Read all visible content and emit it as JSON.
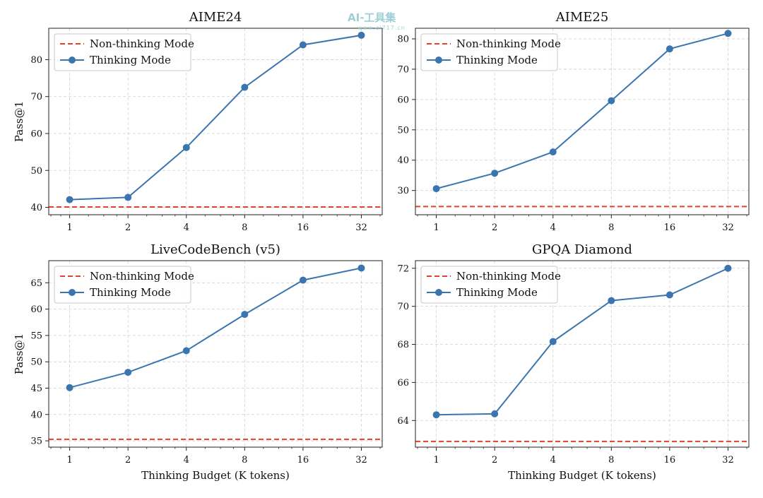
{
  "watermark": {
    "brand": "AI-工具集",
    "site": "www.ai717.cn"
  },
  "colors": {
    "thinking": "#3b75af",
    "non_thinking": "#e3412b",
    "grid": "#cfcfcf"
  },
  "chart_data": [
    {
      "type": "line",
      "title": "AIME24",
      "xlabel": "",
      "ylabel": "Pass@1",
      "x_scale": "log2",
      "x": [
        1,
        2,
        4,
        8,
        16,
        32
      ],
      "xticks": [
        "1",
        "2",
        "4",
        "8",
        "16",
        "32"
      ],
      "ylim": [
        38,
        88.5
      ],
      "yticks": [
        40,
        50,
        60,
        70,
        80
      ],
      "grid": true,
      "legend": "top-left",
      "series": [
        {
          "name": "Non-thinking Mode",
          "style": "dashed",
          "constant": 40.1
        },
        {
          "name": "Thinking Mode",
          "style": "line-marker",
          "values": [
            42.1,
            42.7,
            56.2,
            72.5,
            84.0,
            86.6
          ]
        }
      ]
    },
    {
      "type": "line",
      "title": "AIME25",
      "xlabel": "",
      "ylabel": "",
      "x_scale": "log2",
      "x": [
        1,
        2,
        4,
        8,
        16,
        32
      ],
      "xticks": [
        "1",
        "2",
        "4",
        "8",
        "16",
        "32"
      ],
      "ylim": [
        22,
        83.5
      ],
      "yticks": [
        30,
        40,
        50,
        60,
        70,
        80
      ],
      "grid": true,
      "legend": "top-left",
      "series": [
        {
          "name": "Non-thinking Mode",
          "style": "dashed",
          "constant": 24.7
        },
        {
          "name": "Thinking Mode",
          "style": "line-marker",
          "values": [
            30.6,
            35.7,
            42.7,
            59.6,
            76.7,
            81.8
          ]
        }
      ]
    },
    {
      "type": "line",
      "title": "LiveCodeBench (v5)",
      "xlabel": "Thinking Budget (K tokens)",
      "ylabel": "Pass@1",
      "x_scale": "log2",
      "x": [
        1,
        2,
        4,
        8,
        16,
        32
      ],
      "xticks": [
        "1",
        "2",
        "4",
        "8",
        "16",
        "32"
      ],
      "ylim": [
        33.8,
        69.2
      ],
      "yticks": [
        35,
        40,
        45,
        50,
        55,
        60,
        65
      ],
      "grid": true,
      "legend": "top-left",
      "series": [
        {
          "name": "Non-thinking Mode",
          "style": "dashed",
          "constant": 35.3
        },
        {
          "name": "Thinking Mode",
          "style": "line-marker",
          "values": [
            45.1,
            48.0,
            52.1,
            59.0,
            65.5,
            67.8
          ]
        }
      ]
    },
    {
      "type": "line",
      "title": "GPQA Diamond",
      "xlabel": "Thinking Budget (K tokens)",
      "ylabel": "",
      "x_scale": "log2",
      "x": [
        1,
        2,
        4,
        8,
        16,
        32
      ],
      "xticks": [
        "1",
        "2",
        "4",
        "8",
        "16",
        "32"
      ],
      "ylim": [
        62.6,
        72.4
      ],
      "yticks": [
        64,
        66,
        68,
        70,
        72
      ],
      "grid": true,
      "legend": "top-left",
      "series": [
        {
          "name": "Non-thinking Mode",
          "style": "dashed",
          "constant": 62.9
        },
        {
          "name": "Thinking Mode",
          "style": "line-marker",
          "values": [
            64.3,
            64.35,
            68.15,
            70.3,
            70.6,
            72.0
          ]
        }
      ]
    }
  ]
}
